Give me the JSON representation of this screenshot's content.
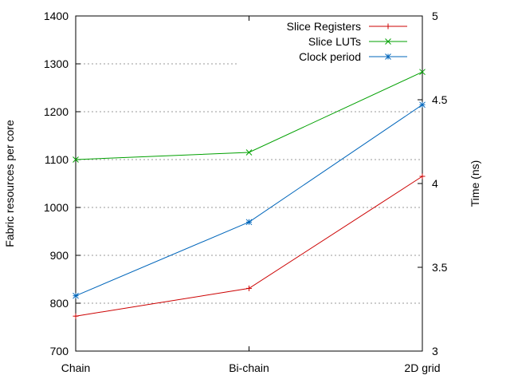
{
  "chart_data": {
    "type": "line",
    "categories": [
      "Chain",
      "Bi-chain",
      "2D grid"
    ],
    "series": [
      {
        "name": "Slice Registers",
        "axis": "left",
        "color": "#cc0000",
        "marker": "plus",
        "values": [
          773,
          831,
          1065
        ]
      },
      {
        "name": "Slice LUTs",
        "axis": "left",
        "color": "#00a000",
        "marker": "cross",
        "values": [
          1100,
          1115,
          1283
        ]
      },
      {
        "name": "Clock period",
        "axis": "right",
        "color": "#0066bb",
        "marker": "star",
        "values": [
          3.33,
          3.77,
          4.47
        ]
      }
    ],
    "y_left": {
      "label": "Fabric resources per core",
      "range": [
        700,
        1400
      ],
      "ticks": [
        "700",
        "800",
        "900",
        "1000",
        "1100",
        "1200",
        "1300",
        "1400"
      ]
    },
    "y_right": {
      "label": "Time (ns)",
      "range": [
        3,
        5
      ],
      "ticks": [
        "3",
        "3.5",
        "4",
        "4.5",
        "5"
      ]
    },
    "grid": "horizontal-dotted",
    "legend_position": "top-right"
  }
}
